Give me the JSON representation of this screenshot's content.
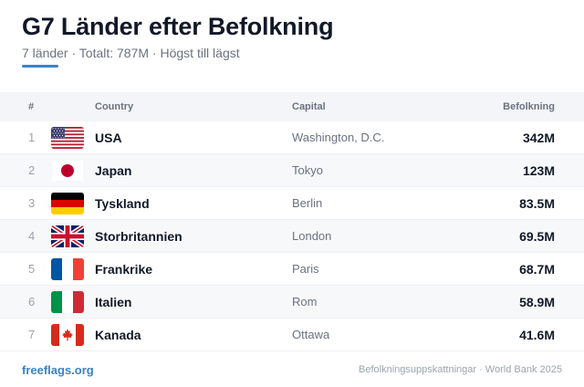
{
  "header": {
    "title": "G7 Länder efter Befolkning",
    "subtitle": "7 länder · Totalt: 787M · Högst till lägst"
  },
  "table": {
    "columns": {
      "num": "#",
      "country": "Country",
      "capital": "Capital",
      "population": "Befolkning"
    },
    "rows": [
      {
        "num": "1",
        "country": "USA",
        "capital": "Washington, D.C.",
        "population": "342M",
        "flag": "us-flag-icon"
      },
      {
        "num": "2",
        "country": "Japan",
        "capital": "Tokyo",
        "population": "123M",
        "flag": "jp-flag-icon"
      },
      {
        "num": "3",
        "country": "Tyskland",
        "capital": "Berlin",
        "population": "83.5M",
        "flag": "de-flag-icon"
      },
      {
        "num": "4",
        "country": "Storbritannien",
        "capital": "London",
        "population": "69.5M",
        "flag": "gb-flag-icon"
      },
      {
        "num": "5",
        "country": "Frankrike",
        "capital": "Paris",
        "population": "68.7M",
        "flag": "fr-flag-icon"
      },
      {
        "num": "6",
        "country": "Italien",
        "capital": "Rom",
        "population": "58.9M",
        "flag": "it-flag-icon"
      },
      {
        "num": "7",
        "country": "Kanada",
        "capital": "Ottawa",
        "population": "41.6M",
        "flag": "ca-flag-icon"
      }
    ]
  },
  "footer": {
    "brand": "freeflags.org",
    "source": "Befolkningsuppskattningar · World Bank 2025"
  },
  "colors": {
    "accent": "#3b82c4",
    "row_alt": "#f6f8fa",
    "header_bg": "#f3f5f8"
  }
}
